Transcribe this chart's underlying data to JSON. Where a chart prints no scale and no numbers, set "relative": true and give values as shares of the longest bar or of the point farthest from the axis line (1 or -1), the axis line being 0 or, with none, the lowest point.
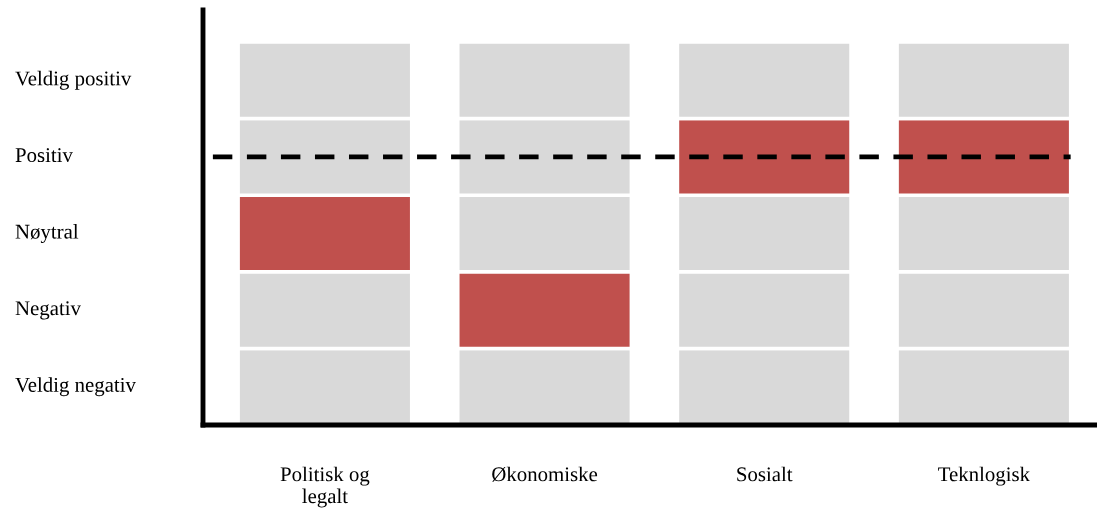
{
  "chart_data": {
    "type": "bar",
    "stacked": true,
    "relative": true,
    "categories": [
      "Politisk og\nlegalt",
      "Økonomiske",
      "Sosialt",
      "Teknlogisk"
    ],
    "series": [
      {
        "values": [
          0.2,
          0.2,
          0.2,
          0.2
        ],
        "colors": [
          "#d9d9d9",
          "#d9d9d9",
          "#d9d9d9",
          "#d9d9d9"
        ]
      },
      {
        "values": [
          0.2,
          0.2,
          0.2,
          0.2
        ],
        "colors": [
          "#d9d9d9",
          "#c0504d",
          "#d9d9d9",
          "#d9d9d9"
        ]
      },
      {
        "values": [
          0.2,
          0.2,
          0.2,
          0.2
        ],
        "colors": [
          "#c0504d",
          "#d9d9d9",
          "#d9d9d9",
          "#d9d9d9"
        ]
      },
      {
        "values": [
          0.2,
          0.2,
          0.2,
          0.2
        ],
        "colors": [
          "#d9d9d9",
          "#d9d9d9",
          "#c0504d",
          "#c0504d"
        ]
      },
      {
        "values": [
          0.2,
          0.2,
          0.2,
          0.2
        ],
        "colors": [
          "#d9d9d9",
          "#d9d9d9",
          "#d9d9d9",
          "#d9d9d9"
        ]
      }
    ],
    "annotations": [
      "Veldig positiv",
      "Positiv",
      "Nøytral",
      "Negativ",
      "Veldig negativ"
    ],
    "ref_lines": [
      {
        "axis": "y",
        "value": 0.7,
        "color": "#000000",
        "line_style": "dashed"
      }
    ],
    "grid": false,
    "legend": false
  }
}
